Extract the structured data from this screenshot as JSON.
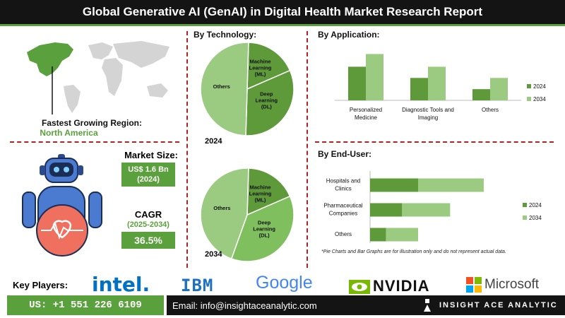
{
  "header": {
    "title": "Global Generative AI (GenAI) in Digital Health Market  Research Report"
  },
  "left": {
    "region_label": "Fastest Growing Region:",
    "region_value": "North America",
    "market_size_label": "Market Size:",
    "market_size_value": "US$ 1.6 Bn",
    "market_size_year": "(2024)",
    "cagr_label": "CAGR",
    "cagr_period": "(2025-2034)",
    "cagr_value": "36.5%"
  },
  "technology": {
    "title": "By Technology:",
    "year_top": "2024",
    "year_bottom": "2034"
  },
  "application": {
    "title": "By Application:"
  },
  "enduser": {
    "title": "By End-User:"
  },
  "note": "*Pie Charts and Bar Graphs are for illustration only and do not represent actual data.",
  "key_players": {
    "label": "Key Players:",
    "names": [
      "intel.",
      "IBM",
      "Google",
      "NVIDIA",
      "Microsoft"
    ]
  },
  "footer": {
    "phone": "US: +1 551 226 6109",
    "email": "Email: info@insightaceanalytic.com",
    "brand": "INSIGHT ACE ANALYTIC"
  },
  "colors": {
    "dark_green": "#5f9a3a",
    "light_green": "#9bcb80",
    "brand_green": "#5aa03c",
    "mid_green": "#7fbf5e"
  },
  "chart_data": [
    {
      "type": "pie",
      "title": "By Technology:",
      "year": "2024",
      "slices": [
        {
          "label": "Others",
          "value": 50,
          "color": "#9bcb80"
        },
        {
          "label": "Deep Learning (DL)",
          "value": 32,
          "color": "#5f9a3a"
        },
        {
          "label": "Machine Learning (ML)",
          "value": 18,
          "color": "#5f9a3a"
        }
      ]
    },
    {
      "type": "pie",
      "title": "By Technology:",
      "year": "2034",
      "slices": [
        {
          "label": "Others",
          "value": 45,
          "color": "#9bcb80"
        },
        {
          "label": "Deep Learning (DL)",
          "value": 37,
          "color": "#7fbf5e"
        },
        {
          "label": "Machine Learning (ML)",
          "value": 18,
          "color": "#5f9a3a"
        }
      ]
    },
    {
      "type": "bar",
      "title": "By Application:",
      "categories": [
        "Personalized Medicine",
        "Diagnostic Tools and Imaging",
        "Others"
      ],
      "series": [
        {
          "name": "2024",
          "values": [
            45,
            30,
            15
          ],
          "color": "#5f9a3a"
        },
        {
          "name": "2034",
          "values": [
            62,
            45,
            30
          ],
          "color": "#9bcb80"
        }
      ],
      "ylim": [
        0,
        70
      ],
      "legend": "right"
    },
    {
      "type": "bar",
      "orientation": "horizontal",
      "title": "By End-User:",
      "categories": [
        "Hospitals and Clinics",
        "Pharmaceutical Companies",
        "Others"
      ],
      "series": [
        {
          "name": "2024",
          "values": [
            60,
            40,
            20
          ],
          "color": "#5f9a3a"
        },
        {
          "name": "2034",
          "values": [
            82,
            60,
            40
          ],
          "color": "#9bcb80"
        }
      ],
      "xlim": [
        0,
        150
      ],
      "legend": "right"
    }
  ]
}
